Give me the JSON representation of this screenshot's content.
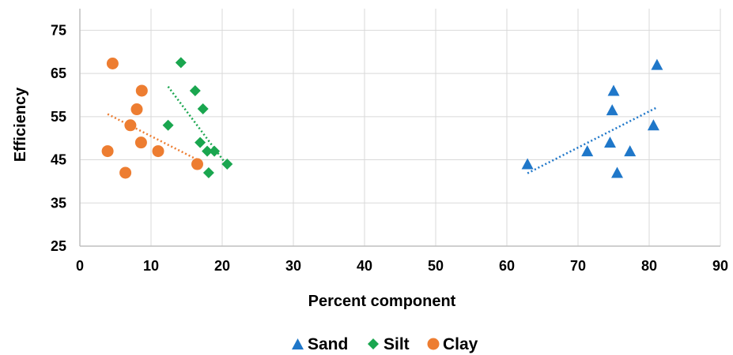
{
  "chart_data": {
    "type": "scatter",
    "xlabel": "Percent component",
    "ylabel": "Efficiency",
    "xlim": [
      0,
      90
    ],
    "ylim": [
      25,
      80
    ],
    "xticks": [
      0,
      10,
      20,
      30,
      40,
      50,
      60,
      70,
      80,
      90
    ],
    "yticks": [
      25,
      35,
      45,
      55,
      65,
      75
    ],
    "grid": "both",
    "legend_position": "bottom",
    "series": [
      {
        "name": "Sand",
        "marker": "triangle",
        "color": "#1f77c9",
        "trendline": "linear",
        "points": [
          [
            62.9,
            44
          ],
          [
            71.3,
            47
          ],
          [
            74.5,
            49
          ],
          [
            74.8,
            56.5
          ],
          [
            75.0,
            61
          ],
          [
            75.5,
            42
          ],
          [
            77.3,
            47
          ],
          [
            80.6,
            53
          ],
          [
            81.1,
            67
          ]
        ]
      },
      {
        "name": "Silt",
        "marker": "diamond",
        "color": "#1aa64f",
        "trendline": "linear",
        "points": [
          [
            12.4,
            53
          ],
          [
            14.2,
            67.5
          ],
          [
            16.2,
            61
          ],
          [
            16.9,
            49
          ],
          [
            17.3,
            56.8
          ],
          [
            17.9,
            47
          ],
          [
            18.1,
            42
          ],
          [
            18.9,
            47
          ],
          [
            20.7,
            44
          ]
        ]
      },
      {
        "name": "Clay",
        "marker": "circle",
        "color": "#ed7d31",
        "trendline": "linear",
        "points": [
          [
            3.9,
            47
          ],
          [
            4.6,
            67.3
          ],
          [
            6.4,
            42
          ],
          [
            7.1,
            53
          ],
          [
            8.0,
            56.7
          ],
          [
            8.6,
            49
          ],
          [
            8.7,
            61
          ],
          [
            11.0,
            47
          ],
          [
            16.5,
            44
          ]
        ]
      }
    ]
  }
}
